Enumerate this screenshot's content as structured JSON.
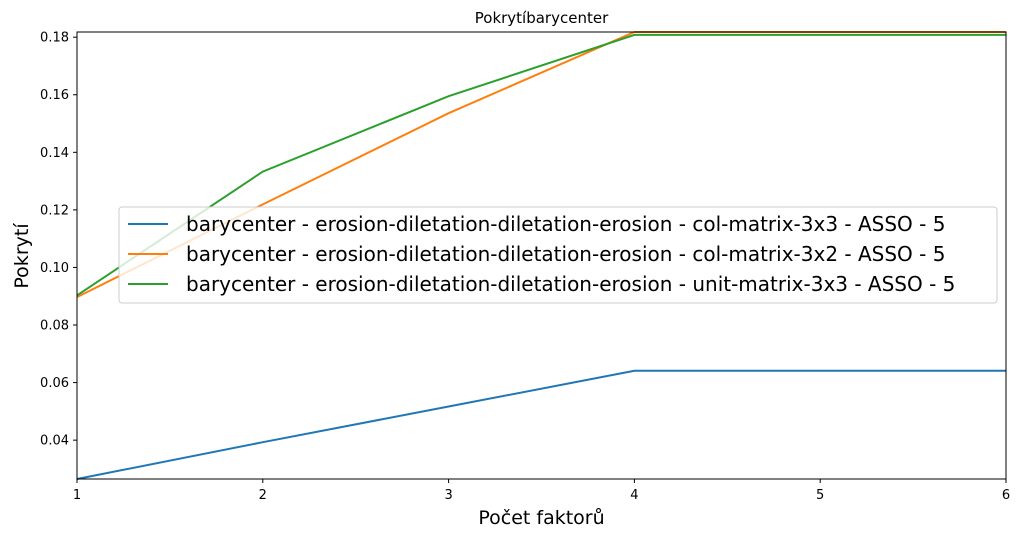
{
  "chart_data": {
    "type": "line",
    "title": "Pokrytíbarycenter",
    "xlabel": "Počet faktorů",
    "ylabel": "Pokrytí",
    "x": [
      1,
      2,
      3,
      4,
      5,
      6
    ],
    "xlim": [
      1,
      6
    ],
    "ylim": [
      0.0265,
      0.1818
    ],
    "xticks": [
      "1",
      "2",
      "3",
      "4",
      "5",
      "6"
    ],
    "yticks": [
      "0.04",
      "0.06",
      "0.08",
      "0.10",
      "0.12",
      "0.14",
      "0.16",
      "0.18"
    ],
    "grid": false,
    "legend_position": "center-right",
    "series": [
      {
        "name": "barycenter - erosion-diletation-diletation-erosion - col-matrix-3x3 - ASSO - 5",
        "color": "#1f77b4",
        "values": [
          0.0265,
          0.0393,
          0.0517,
          0.0641,
          0.0641,
          0.0641
        ]
      },
      {
        "name": "barycenter - erosion-diletation-diletation-erosion - col-matrix-3x2 - ASSO - 5",
        "color": "#ff7f0e",
        "values": [
          0.0897,
          0.1219,
          0.1536,
          0.1818,
          0.1818,
          0.1818
        ]
      },
      {
        "name": "barycenter - erosion-diletation-diletation-erosion - unit-matrix-3x3 - ASSO - 5",
        "color": "#2ca02c",
        "values": [
          0.0903,
          0.1333,
          0.1595,
          0.1808,
          0.1808,
          0.1808
        ]
      }
    ]
  }
}
